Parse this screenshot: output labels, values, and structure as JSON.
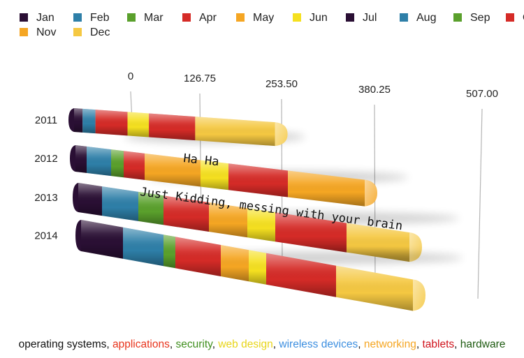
{
  "chart_data": {
    "type": "bar",
    "orientation": "horizontal",
    "stacked": true,
    "three_d": true,
    "categories": [
      "2011",
      "2012",
      "2013",
      "2014"
    ],
    "axis": {
      "ticks": [
        "0",
        "126.75",
        "253.50",
        "380.25",
        "507.00"
      ],
      "range": [
        0,
        507
      ],
      "grid": true
    },
    "legend_position": "top",
    "series": [
      {
        "name": "Jan",
        "color": "#2a0f34",
        "values": [
          12,
          16,
          34,
          60
        ]
      },
      {
        "name": "Feb",
        "color": "#2e7fa8",
        "values": [
          18,
          35,
          52,
          58
        ]
      },
      {
        "name": "Mar",
        "color": "#5aa02c",
        "values": [
          0,
          18,
          36,
          17
        ]
      },
      {
        "name": "Apr",
        "color": "#d52b27",
        "values": [
          45,
          30,
          65,
          65
        ]
      },
      {
        "name": "May",
        "color": "#f5a623",
        "values": [
          0,
          80,
          55,
          40
        ]
      },
      {
        "name": "Jun",
        "color": "#f5e020",
        "values": [
          30,
          40,
          40,
          25
        ]
      },
      {
        "name": "Jul",
        "color": "#2a0f34",
        "values": [
          0,
          0,
          0,
          0
        ]
      },
      {
        "name": "Aug",
        "color": "#2e7fa8",
        "values": [
          0,
          0,
          0,
          0
        ]
      },
      {
        "name": "Sep",
        "color": "#5aa02c",
        "values": [
          0,
          0,
          0,
          0
        ]
      },
      {
        "name": "Oct",
        "color": "#d52b27",
        "values": [
          65,
          85,
          102,
          100
        ]
      },
      {
        "name": "Nov",
        "color": "#f5a623",
        "values": [
          0,
          110,
          0,
          0
        ]
      },
      {
        "name": "Dec",
        "color": "#f5c842",
        "values": [
          112,
          0,
          90,
          110
        ]
      }
    ],
    "annotations": [
      "Ha Ha",
      "Just Kidding, messing with your brain"
    ]
  },
  "caption": [
    {
      "text": "operating systems",
      "color": "#111111"
    },
    {
      "text": ", ",
      "color": "#111111"
    },
    {
      "text": "applications",
      "color": "#e8341c"
    },
    {
      "text": ", ",
      "color": "#111111"
    },
    {
      "text": "security",
      "color": "#3f8f1e"
    },
    {
      "text": ", ",
      "color": "#111111"
    },
    {
      "text": "web design",
      "color": "#e8d51a"
    },
    {
      "text": ", ",
      "color": "#111111"
    },
    {
      "text": "wireless devices",
      "color": "#3d8fe0"
    },
    {
      "text": ", ",
      "color": "#111111"
    },
    {
      "text": "networking",
      "color": "#f5a623"
    },
    {
      "text": ", ",
      "color": "#111111"
    },
    {
      "text": "tablets",
      "color": "#d0121b"
    },
    {
      "text": ", ",
      "color": "#111111"
    },
    {
      "text": "hardware",
      "color": "#1d5a10"
    }
  ]
}
